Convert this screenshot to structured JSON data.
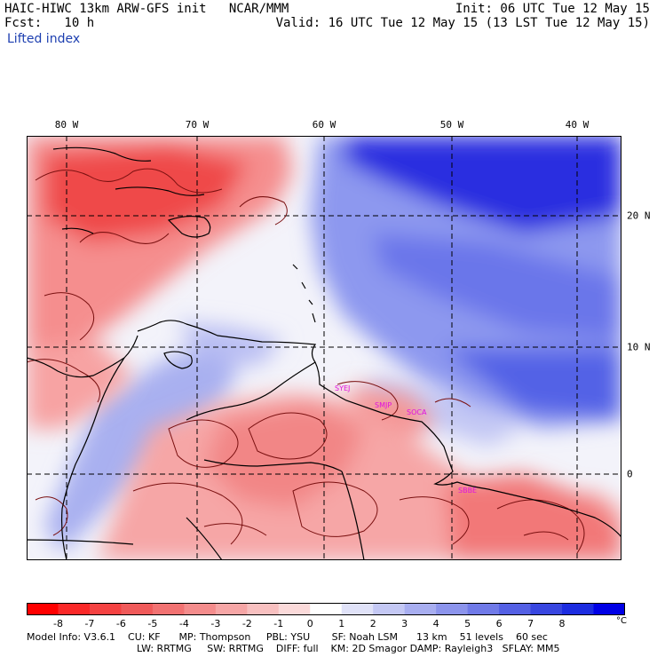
{
  "header": {
    "line1_left": "HAIC-HIWC 13km ARW-GFS init   NCAR/MMM",
    "line2_left": "Fcst:   10 h",
    "line1_right": "Init: 06 UTC Tue 12 May 15",
    "line2_right": "Valid: 16 UTC Tue 12 May 15 (13 LST Tue 12 May 15)",
    "variable": "Lifted index"
  },
  "map": {
    "lon_labels": [
      "80 W",
      "70 W",
      "60 W",
      "50 W",
      "40 W"
    ],
    "lat_labels": [
      "20 N",
      "10 N",
      "0"
    ],
    "stations": [
      "SYEJ",
      "SMJP",
      "SOCA",
      "SBBE"
    ],
    "grid": "dashed",
    "colors": {
      "strong_positive": "#1a1ad8",
      "positive": "#7f8cf0",
      "neutral": "#f2f2f8",
      "negative": "#f59a9a",
      "strong_negative": "#ee3333",
      "contour": "#7a1010",
      "coast": "#000000",
      "station": "#e010e0"
    }
  },
  "colorbar": {
    "ticks": [
      "-8",
      "-7",
      "-6",
      "-5",
      "-4",
      "-3",
      "-2",
      "-1",
      "0",
      "1",
      "2",
      "3",
      "4",
      "5",
      "6",
      "7",
      "8"
    ],
    "unit": "°C",
    "colors": [
      "#ff0000",
      "#fa2828",
      "#f54242",
      "#f05a5a",
      "#f27272",
      "#f48c8c",
      "#f6a6a6",
      "#f8c0c0",
      "#fbdada",
      "#ffffff",
      "#e0e2f8",
      "#c4c8f4",
      "#a8aef0",
      "#8c94ec",
      "#707ae8",
      "#5460e4",
      "#3846e0",
      "#1c2ce0",
      "#0000e6"
    ]
  },
  "model_info": {
    "line1": "Model Info: V3.6.1    CU: KF      MP: Thompson     PBL: YSU       SF: Noah LSM      13 km    51 levels    60 sec",
    "line2": "LW: RRTMG     SW: RRTMG    DIFF: full    KM: 2D Smagor DAMP: Rayleigh3   SFLAY: MM5"
  }
}
